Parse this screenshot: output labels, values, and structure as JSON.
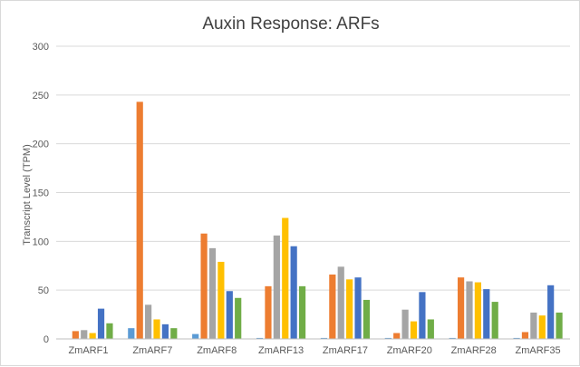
{
  "chart_data": {
    "type": "bar",
    "title": "Auxin Response: ARFs",
    "xlabel": "",
    "ylabel": "Transcript Level (TPM)",
    "ylim": [
      0,
      300
    ],
    "yticks": [
      0,
      50,
      100,
      150,
      200,
      250,
      300
    ],
    "grid": true,
    "legend": "none",
    "categories": [
      "ZmARF1",
      "ZmARF7",
      "ZmARF8",
      "ZmARF13",
      "ZmARF17",
      "ZmARF20",
      "ZmARF28",
      "ZmARF35"
    ],
    "series": [
      {
        "color": "#5B9BD5",
        "values": [
          0,
          11,
          5,
          1,
          1,
          1,
          1,
          1
        ]
      },
      {
        "color": "#ED7D31",
        "values": [
          8,
          243,
          108,
          54,
          66,
          6,
          63,
          7
        ]
      },
      {
        "color": "#A5A5A5",
        "values": [
          9,
          35,
          93,
          106,
          74,
          30,
          59,
          27
        ]
      },
      {
        "color": "#FFC000",
        "values": [
          6,
          20,
          79,
          124,
          61,
          18,
          58,
          24
        ]
      },
      {
        "color": "#4472C4",
        "values": [
          31,
          15,
          49,
          95,
          63,
          48,
          51,
          55
        ]
      },
      {
        "color": "#70AD47",
        "values": [
          16,
          11,
          42,
          54,
          40,
          20,
          38,
          27
        ]
      }
    ]
  }
}
